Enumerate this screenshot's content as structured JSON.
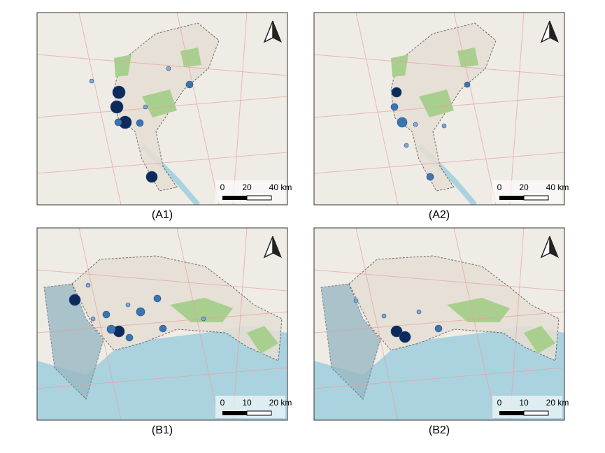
{
  "panels": [
    {
      "label": "(A1)",
      "scale": [
        "0",
        "20",
        "40 km"
      ]
    },
    {
      "label": "(A2)",
      "scale": [
        "0",
        "20",
        "40 km"
      ]
    },
    {
      "label": "(B1)",
      "scale": [
        "0",
        "10",
        "20 km"
      ]
    },
    {
      "label": "(B2)",
      "scale": [
        "0",
        "10",
        "20 km"
      ]
    }
  ]
}
